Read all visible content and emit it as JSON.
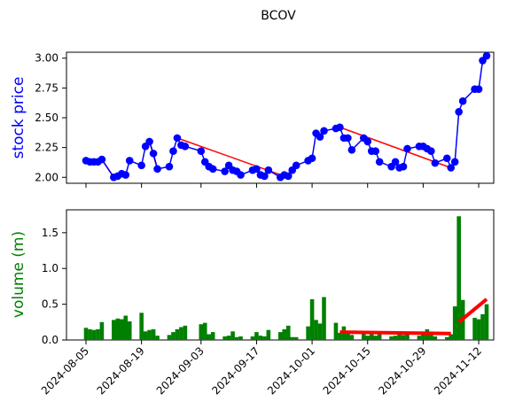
{
  "chart_data": [
    {
      "type": "line",
      "title": "BCOV",
      "ylabel": "stock price",
      "ylabel_color": "#0000ff",
      "xlim": [
        "2024-08-05",
        "2024-11-14"
      ],
      "ylim": [
        1.95,
        3.05
      ],
      "yticks": [
        "2.00",
        "2.25",
        "2.50",
        "2.75",
        "3.00"
      ],
      "series": [
        {
          "color": "#0000ff",
          "marker": "circle",
          "points": [
            [
              "2024-08-05",
              2.14
            ],
            [
              "2024-08-06",
              2.13
            ],
            [
              "2024-08-07",
              2.13
            ],
            [
              "2024-08-08",
              2.13
            ],
            [
              "2024-08-09",
              2.15
            ],
            [
              "2024-08-12",
              2.0
            ],
            [
              "2024-08-13",
              2.01
            ],
            [
              "2024-08-14",
              2.03
            ],
            [
              "2024-08-15",
              2.02
            ],
            [
              "2024-08-16",
              2.14
            ],
            [
              "2024-08-19",
              2.1
            ],
            [
              "2024-08-20",
              2.26
            ],
            [
              "2024-08-21",
              2.3
            ],
            [
              "2024-08-22",
              2.2
            ],
            [
              "2024-08-23",
              2.07
            ],
            [
              "2024-08-26",
              2.09
            ],
            [
              "2024-08-27",
              2.22
            ],
            [
              "2024-08-28",
              2.33
            ],
            [
              "2024-08-29",
              2.27
            ],
            [
              "2024-08-30",
              2.26
            ],
            [
              "2024-09-03",
              2.22
            ],
            [
              "2024-09-04",
              2.13
            ],
            [
              "2024-09-05",
              2.09
            ],
            [
              "2024-09-06",
              2.07
            ],
            [
              "2024-09-09",
              2.05
            ],
            [
              "2024-09-10",
              2.1
            ],
            [
              "2024-09-11",
              2.06
            ],
            [
              "2024-09-12",
              2.05
            ],
            [
              "2024-09-13",
              2.02
            ],
            [
              "2024-09-16",
              2.06
            ],
            [
              "2024-09-17",
              2.07
            ],
            [
              "2024-09-18",
              2.02
            ],
            [
              "2024-09-19",
              2.01
            ],
            [
              "2024-09-20",
              2.06
            ],
            [
              "2024-09-23",
              2.0
            ],
            [
              "2024-09-24",
              2.02
            ],
            [
              "2024-09-25",
              2.01
            ],
            [
              "2024-09-26",
              2.06
            ],
            [
              "2024-09-27",
              2.1
            ],
            [
              "2024-09-30",
              2.14
            ],
            [
              "2024-10-01",
              2.16
            ],
            [
              "2024-10-02",
              2.37
            ],
            [
              "2024-10-03",
              2.34
            ],
            [
              "2024-10-04",
              2.39
            ],
            [
              "2024-10-07",
              2.41
            ],
            [
              "2024-10-08",
              2.42
            ],
            [
              "2024-10-09",
              2.33
            ],
            [
              "2024-10-10",
              2.33
            ],
            [
              "2024-10-11",
              2.23
            ],
            [
              "2024-10-14",
              2.33
            ],
            [
              "2024-10-15",
              2.3
            ],
            [
              "2024-10-16",
              2.22
            ],
            [
              "2024-10-17",
              2.22
            ],
            [
              "2024-10-18",
              2.13
            ],
            [
              "2024-10-21",
              2.09
            ],
            [
              "2024-10-22",
              2.13
            ],
            [
              "2024-10-23",
              2.08
            ],
            [
              "2024-10-24",
              2.09
            ],
            [
              "2024-10-25",
              2.24
            ],
            [
              "2024-10-28",
              2.26
            ],
            [
              "2024-10-29",
              2.26
            ],
            [
              "2024-10-30",
              2.24
            ],
            [
              "2024-10-31",
              2.22
            ],
            [
              "2024-11-01",
              2.12
            ],
            [
              "2024-11-04",
              2.16
            ],
            [
              "2024-11-05",
              2.08
            ],
            [
              "2024-11-06",
              2.13
            ],
            [
              "2024-11-07",
              2.55
            ],
            [
              "2024-11-08",
              2.64
            ],
            [
              "2024-11-11",
              2.74
            ],
            [
              "2024-11-12",
              2.74
            ],
            [
              "2024-11-13",
              2.98
            ],
            [
              "2024-11-14",
              3.02
            ]
          ]
        }
      ],
      "trend_lines": [
        {
          "color": "#ff0000",
          "from": [
            "2024-08-09",
            2.15
          ],
          "to": [
            "2024-08-12",
            2.0
          ]
        },
        {
          "color": "#ff0000",
          "from": [
            "2024-08-21",
            2.3
          ],
          "to": [
            "2024-08-23",
            2.07
          ]
        },
        {
          "color": "#ff0000",
          "from": [
            "2024-08-28",
            2.33
          ],
          "to": [
            "2024-09-24",
            2.01
          ]
        },
        {
          "color": "#ff0000",
          "from": [
            "2024-10-08",
            2.42
          ],
          "to": [
            "2024-11-05",
            2.08
          ]
        }
      ]
    },
    {
      "type": "bar",
      "ylabel": "volume (m)",
      "ylabel_color": "#008000",
      "bar_color": "#008000",
      "xlim": [
        "2024-08-05",
        "2024-11-14"
      ],
      "ylim": [
        0,
        1.82
      ],
      "yticks": [
        "0.0",
        "0.5",
        "1.0",
        "1.5"
      ],
      "xticks": [
        "2024-08-05",
        "2024-08-19",
        "2024-09-03",
        "2024-09-17",
        "2024-10-01",
        "2024-10-15",
        "2024-10-29",
        "2024-11-12"
      ],
      "series": [
        {
          "points": [
            [
              "2024-08-05",
              0.17
            ],
            [
              "2024-08-06",
              0.15
            ],
            [
              "2024-08-07",
              0.14
            ],
            [
              "2024-08-08",
              0.15
            ],
            [
              "2024-08-09",
              0.25
            ],
            [
              "2024-08-12",
              0.28
            ],
            [
              "2024-08-13",
              0.3
            ],
            [
              "2024-08-14",
              0.29
            ],
            [
              "2024-08-15",
              0.34
            ],
            [
              "2024-08-16",
              0.26
            ],
            [
              "2024-08-19",
              0.38
            ],
            [
              "2024-08-20",
              0.12
            ],
            [
              "2024-08-21",
              0.14
            ],
            [
              "2024-08-22",
              0.15
            ],
            [
              "2024-08-23",
              0.06
            ],
            [
              "2024-08-26",
              0.07
            ],
            [
              "2024-08-27",
              0.11
            ],
            [
              "2024-08-28",
              0.15
            ],
            [
              "2024-08-29",
              0.18
            ],
            [
              "2024-08-30",
              0.2
            ],
            [
              "2024-09-03",
              0.22
            ],
            [
              "2024-09-04",
              0.24
            ],
            [
              "2024-09-05",
              0.08
            ],
            [
              "2024-09-06",
              0.11
            ],
            [
              "2024-09-09",
              0.05
            ],
            [
              "2024-09-10",
              0.06
            ],
            [
              "2024-09-11",
              0.12
            ],
            [
              "2024-09-12",
              0.04
            ],
            [
              "2024-09-13",
              0.05
            ],
            [
              "2024-09-16",
              0.05
            ],
            [
              "2024-09-17",
              0.11
            ],
            [
              "2024-09-18",
              0.06
            ],
            [
              "2024-09-19",
              0.05
            ],
            [
              "2024-09-20",
              0.14
            ],
            [
              "2024-09-23",
              0.11
            ],
            [
              "2024-09-24",
              0.15
            ],
            [
              "2024-09-25",
              0.2
            ],
            [
              "2024-09-26",
              0.04
            ],
            [
              "2024-09-27",
              0.04
            ],
            [
              "2024-09-30",
              0.19
            ],
            [
              "2024-10-01",
              0.57
            ],
            [
              "2024-10-02",
              0.28
            ],
            [
              "2024-10-03",
              0.23
            ],
            [
              "2024-10-04",
              0.6
            ],
            [
              "2024-10-07",
              0.24
            ],
            [
              "2024-10-08",
              0.1
            ],
            [
              "2024-10-09",
              0.19
            ],
            [
              "2024-10-10",
              0.12
            ],
            [
              "2024-10-11",
              0.07
            ],
            [
              "2024-10-14",
              0.09
            ],
            [
              "2024-10-15",
              0.06
            ],
            [
              "2024-10-16",
              0.08
            ],
            [
              "2024-10-17",
              0.06
            ],
            [
              "2024-10-18",
              0.09
            ],
            [
              "2024-10-21",
              0.05
            ],
            [
              "2024-10-22",
              0.06
            ],
            [
              "2024-10-23",
              0.09
            ],
            [
              "2024-10-24",
              0.07
            ],
            [
              "2024-10-25",
              0.1
            ],
            [
              "2024-10-28",
              0.06
            ],
            [
              "2024-10-29",
              0.08
            ],
            [
              "2024-10-30",
              0.15
            ],
            [
              "2024-10-31",
              0.1
            ],
            [
              "2024-11-01",
              0.05
            ],
            [
              "2024-11-04",
              0.04
            ],
            [
              "2024-11-05",
              0.08
            ],
            [
              "2024-11-06",
              0.47
            ],
            [
              "2024-11-07",
              1.73
            ],
            [
              "2024-11-08",
              0.56
            ],
            [
              "2024-11-11",
              0.31
            ],
            [
              "2024-11-12",
              0.29
            ],
            [
              "2024-11-13",
              0.36
            ],
            [
              "2024-11-14",
              0.5
            ]
          ]
        }
      ],
      "trend_lines": [
        {
          "color": "#ff0000",
          "from": [
            "2024-10-08",
            0.11
          ],
          "to": [
            "2024-11-05",
            0.09
          ]
        },
        {
          "color": "#ff0000",
          "from": [
            "2024-11-07",
            0.25
          ],
          "to": [
            "2024-11-14",
            0.57
          ]
        }
      ]
    }
  ]
}
